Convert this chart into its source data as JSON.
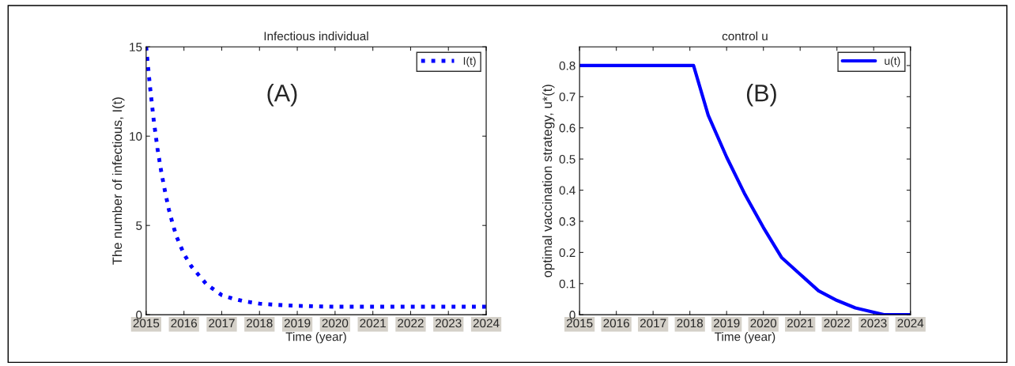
{
  "chart_data": [
    {
      "type": "line",
      "title": "Infectious individual",
      "xlabel": "Time (year)",
      "ylabel": "The number of infectious, I(t)",
      "annotations": [
        "(A)"
      ],
      "legend": "top right",
      "xlim": [
        2015,
        2024
      ],
      "xticks": [
        2015,
        2016,
        2017,
        2018,
        2019,
        2020,
        2021,
        2022,
        2023,
        2024
      ],
      "ylim": [
        0,
        15
      ],
      "yticks": [
        0,
        5,
        10,
        15
      ],
      "series": [
        {
          "name": "I(t)",
          "color": "#0000ff",
          "line_style": "dotted",
          "x": [
            2015,
            2015.1,
            2015.2,
            2015.3,
            2015.4,
            2015.5,
            2015.6,
            2015.7,
            2015.8,
            2016,
            2016.2,
            2016.4,
            2016.6,
            2016.8,
            2017,
            2017.3,
            2017.6,
            2018,
            2018.5,
            2019,
            2019.5,
            2020,
            2021,
            2022,
            2023,
            2024
          ],
          "values": [
            15,
            12.8,
            10.9,
            9.3,
            8.0,
            6.9,
            5.9,
            5.1,
            4.4,
            3.4,
            2.7,
            2.2,
            1.7,
            1.4,
            1.1,
            0.9,
            0.75,
            0.62,
            0.55,
            0.5,
            0.47,
            0.45,
            0.45,
            0.45,
            0.45,
            0.45
          ]
        }
      ]
    },
    {
      "type": "line",
      "title": "control u",
      "xlabel": "Time (year)",
      "ylabel": "optimal vaccination strategy, u*(t)",
      "annotations": [
        "(B)"
      ],
      "legend": "top right",
      "xlim": [
        2015,
        2024
      ],
      "xticks": [
        2015,
        2016,
        2017,
        2018,
        2019,
        2020,
        2021,
        2022,
        2023,
        2024
      ],
      "ylim": [
        0,
        0.86
      ],
      "yticks": [
        0,
        0.1,
        0.2,
        0.3,
        0.4,
        0.5,
        0.6,
        0.7,
        0.8
      ],
      "series": [
        {
          "name": "u(t)",
          "color": "#0000ff",
          "line_style": "solid",
          "x": [
            2015,
            2016,
            2017,
            2018,
            2018.1,
            2018.5,
            2019,
            2019.5,
            2020,
            2020.5,
            2021,
            2021.5,
            2022,
            2022.5,
            2023,
            2023.3,
            2024
          ],
          "values": [
            0.8,
            0.8,
            0.8,
            0.8,
            0.8,
            0.64,
            0.506,
            0.386,
            0.28,
            0.183,
            0.13,
            0.077,
            0.046,
            0.022,
            0.008,
            0,
            0
          ]
        }
      ]
    }
  ]
}
